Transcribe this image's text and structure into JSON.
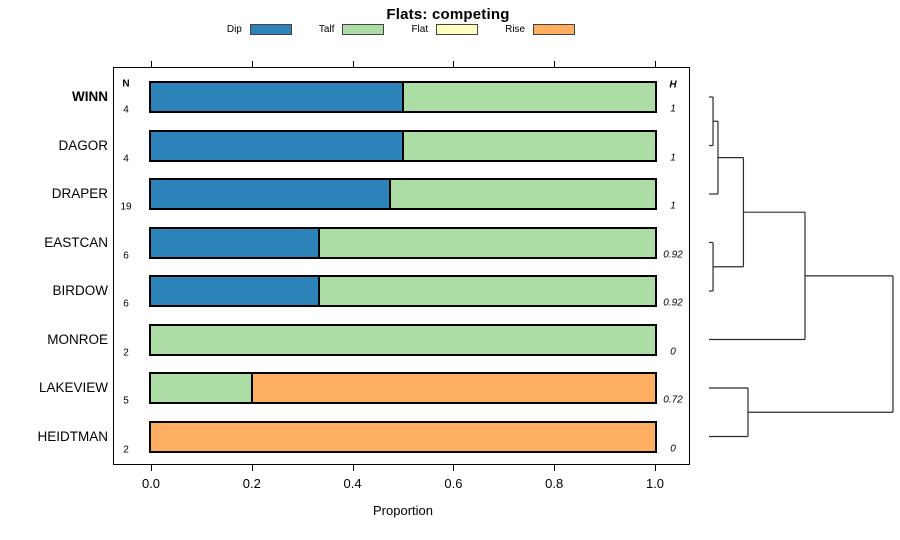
{
  "title": "Flats: competing",
  "legend": {
    "items": [
      {
        "label": "Dip",
        "color": "#2B83BA"
      },
      {
        "label": "Talf",
        "color": "#ABDDA4"
      },
      {
        "label": "Flat",
        "color": "#FFFFBF"
      },
      {
        "label": "Rise",
        "color": "#FDAE61"
      }
    ]
  },
  "columns": {
    "n_header": "N",
    "h_header": "H"
  },
  "axis": {
    "xlabel": "Proportion",
    "tick_labels": [
      "0.0",
      "0.2",
      "0.4",
      "0.6",
      "0.8",
      "1.0"
    ],
    "tick_values": [
      0,
      0.2,
      0.4,
      0.6,
      0.8,
      1.0
    ]
  },
  "chart_data": {
    "type": "bar",
    "orientation": "horizontal-stacked",
    "title": "Flats: competing",
    "xlabel": "Proportion",
    "xlim": [
      0,
      1
    ],
    "grid": false,
    "legend_position": "top",
    "legend": [
      "Dip",
      "Talf",
      "Flat",
      "Rise"
    ],
    "series_colors": {
      "Dip": "#2B83BA",
      "Talf": "#ABDDA4",
      "Flat": "#FFFFBF",
      "Rise": "#FDAE61"
    },
    "rows": [
      {
        "label": "WINN",
        "bold": true,
        "n": "4",
        "h": "1",
        "segments": [
          {
            "name": "Dip",
            "value": 0.5
          },
          {
            "name": "Talf",
            "value": 0.5
          }
        ]
      },
      {
        "label": "DAGOR",
        "bold": false,
        "n": "4",
        "h": "1",
        "segments": [
          {
            "name": "Dip",
            "value": 0.5
          },
          {
            "name": "Talf",
            "value": 0.5
          }
        ]
      },
      {
        "label": "DRAPER",
        "bold": false,
        "n": "19",
        "h": "1",
        "segments": [
          {
            "name": "Dip",
            "value": 0.474
          },
          {
            "name": "Talf",
            "value": 0.526
          }
        ]
      },
      {
        "label": "EASTCAN",
        "bold": false,
        "n": "6",
        "h": "0.92",
        "segments": [
          {
            "name": "Dip",
            "value": 0.333
          },
          {
            "name": "Talf",
            "value": 0.667
          }
        ]
      },
      {
        "label": "BIRDOW",
        "bold": false,
        "n": "6",
        "h": "0.92",
        "segments": [
          {
            "name": "Dip",
            "value": 0.333
          },
          {
            "name": "Talf",
            "value": 0.667
          }
        ]
      },
      {
        "label": "MONROE",
        "bold": false,
        "n": "2",
        "h": "0",
        "segments": [
          {
            "name": "Talf",
            "value": 1.0
          }
        ]
      },
      {
        "label": "LAKEVIEW",
        "bold": false,
        "n": "5",
        "h": "0.72",
        "segments": [
          {
            "name": "Talf",
            "value": 0.2
          },
          {
            "name": "Rise",
            "value": 0.8
          }
        ]
      },
      {
        "label": "HEIDTMAN",
        "bold": false,
        "n": "2",
        "h": "0",
        "segments": [
          {
            "name": "Rise",
            "value": 1.0
          }
        ]
      }
    ],
    "dendrogram": {
      "leaf_order": [
        "WINN",
        "DAGOR",
        "DRAPER",
        "EASTCAN",
        "BIRDOW",
        "MONROE",
        "LAKEVIEW",
        "HEIDTMAN"
      ],
      "merges": [
        {
          "id": "A",
          "children": [
            "WINN",
            "DAGOR"
          ],
          "height": 0.016
        },
        {
          "id": "B",
          "children": [
            "A",
            "DRAPER"
          ],
          "height": 0.042
        },
        {
          "id": "C",
          "children": [
            "EASTCAN",
            "BIRDOW"
          ],
          "height": 0.016
        },
        {
          "id": "D",
          "children": [
            "B",
            "C"
          ],
          "height": 0.176
        },
        {
          "id": "E",
          "children": [
            "D",
            "MONROE"
          ],
          "height": 0.5
        },
        {
          "id": "F",
          "children": [
            "LAKEVIEW",
            "HEIDTMAN"
          ],
          "height": 0.2
        },
        {
          "id": "G",
          "children": [
            "E",
            "F"
          ],
          "height": 0.963
        }
      ]
    }
  }
}
